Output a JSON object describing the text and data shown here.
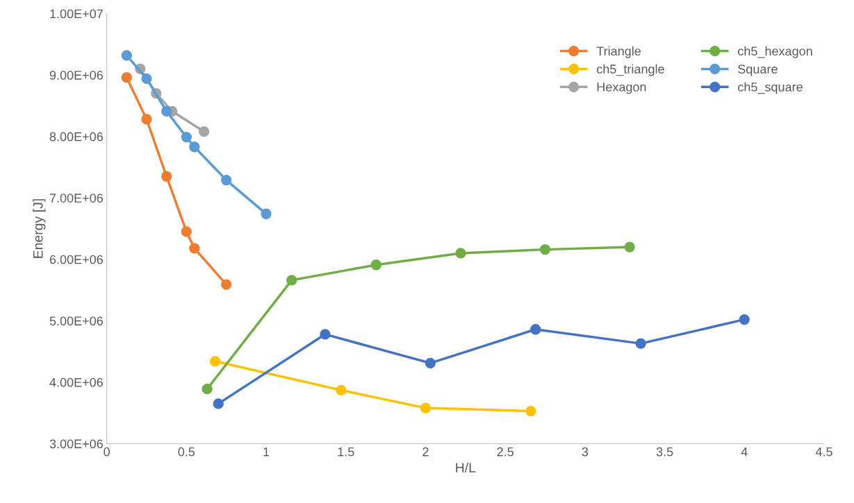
{
  "chart_data": {
    "type": "line",
    "xlabel": "H/L",
    "ylabel": "Energy [J]",
    "marker": "circle",
    "line_style": "solid",
    "grid": false,
    "legend": "top right",
    "xlim": [
      0,
      4.5
    ],
    "xticks": [
      0,
      0.5,
      1,
      1.5,
      2,
      2.5,
      3,
      3.5,
      4,
      4.5
    ],
    "ylim": [
      3000000,
      10000000
    ],
    "yticks": [
      {
        "value": 3000000,
        "label": "3.00E+06"
      },
      {
        "value": 4000000,
        "label": "4.00E+06"
      },
      {
        "value": 5000000,
        "label": "5.00E+06"
      },
      {
        "value": 6000000,
        "label": "6.00E+06"
      },
      {
        "value": 7000000,
        "label": "7.00E+06"
      },
      {
        "value": 8000000,
        "label": "8.00E+06"
      },
      {
        "value": 9000000,
        "label": "9.00E+06"
      },
      {
        "value": 10000000,
        "label": "1.00E+07"
      }
    ],
    "series": [
      {
        "name": "Triangle",
        "color": "#ed7d31",
        "x": [
          0.125,
          0.25,
          0.375,
          0.5,
          0.55,
          0.75
        ],
        "values": [
          8960000,
          8280000,
          7350000,
          6450000,
          6180000,
          5590000
        ]
      },
      {
        "name": "ch5_triangle",
        "color": "#ffc000",
        "x": [
          0.68,
          1.47,
          2.0,
          2.66
        ],
        "values": [
          4340000,
          3870000,
          3580000,
          3530000
        ]
      },
      {
        "name": "Hexagon",
        "color": "#a5a5a5",
        "x": [
          0.21,
          0.31,
          0.41,
          0.61
        ],
        "values": [
          9100000,
          8700000,
          8410000,
          8080000
        ]
      },
      {
        "name": "ch5_hexagon",
        "color": "#70ad47",
        "x": [
          0.63,
          1.16,
          1.69,
          2.22,
          2.75,
          3.28
        ],
        "values": [
          3890000,
          5660000,
          5910000,
          6100000,
          6160000,
          6200000
        ]
      },
      {
        "name": "Square",
        "color": "#5b9bd5",
        "x": [
          0.125,
          0.25,
          0.375,
          0.5,
          0.55,
          0.75,
          1.0
        ],
        "values": [
          9320000,
          8940000,
          8410000,
          7990000,
          7830000,
          7290000,
          6740000
        ]
      },
      {
        "name": "ch5_square",
        "color": "#4472c4",
        "x": [
          0.7,
          1.37,
          2.03,
          2.69,
          3.35,
          4.0
        ],
        "values": [
          3650000,
          4780000,
          4310000,
          4860000,
          4630000,
          5020000
        ]
      }
    ]
  }
}
